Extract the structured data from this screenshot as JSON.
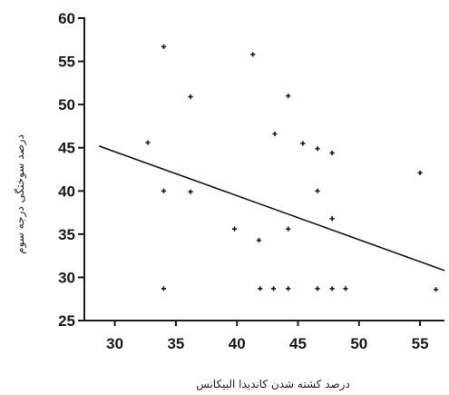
{
  "chart_data": {
    "type": "scatter",
    "title": "",
    "xlabel": "درصد کشته شدن کاندیدا البیکانس",
    "ylabel": "درصد سوختگی درجه سوم",
    "xlim": [
      27.5,
      57
    ],
    "ylim": [
      25,
      60
    ],
    "x_ticks": [
      30,
      35,
      40,
      45,
      50,
      55
    ],
    "y_ticks": [
      25,
      30,
      35,
      40,
      45,
      50,
      55,
      60
    ],
    "grid": false,
    "legend": "none",
    "colors": {
      "axis": "#1a1a1a",
      "points": "#1a1a1a",
      "trend": "#1a1a1a"
    },
    "points": [
      {
        "x": 32.7,
        "y": 45.6
      },
      {
        "x": 34.0,
        "y": 56.7
      },
      {
        "x": 34.0,
        "y": 40.0
      },
      {
        "x": 34.0,
        "y": 28.7
      },
      {
        "x": 36.2,
        "y": 50.9
      },
      {
        "x": 36.2,
        "y": 39.9
      },
      {
        "x": 39.8,
        "y": 35.6
      },
      {
        "x": 41.3,
        "y": 55.8
      },
      {
        "x": 41.8,
        "y": 34.3
      },
      {
        "x": 41.9,
        "y": 28.7
      },
      {
        "x": 43.0,
        "y": 28.7
      },
      {
        "x": 43.1,
        "y": 46.6
      },
      {
        "x": 44.2,
        "y": 51.0
      },
      {
        "x": 44.2,
        "y": 35.6
      },
      {
        "x": 44.2,
        "y": 28.7
      },
      {
        "x": 45.4,
        "y": 45.5
      },
      {
        "x": 46.6,
        "y": 44.9
      },
      {
        "x": 46.6,
        "y": 40.0
      },
      {
        "x": 46.6,
        "y": 28.7
      },
      {
        "x": 47.8,
        "y": 44.4
      },
      {
        "x": 47.8,
        "y": 36.8
      },
      {
        "x": 47.8,
        "y": 28.7
      },
      {
        "x": 48.9,
        "y": 28.7
      },
      {
        "x": 55.0,
        "y": 42.1
      },
      {
        "x": 56.3,
        "y": 28.6
      }
    ],
    "trend_line": {
      "x": [
        28.7,
        57.0
      ],
      "y": [
        45.2,
        30.8
      ]
    }
  }
}
